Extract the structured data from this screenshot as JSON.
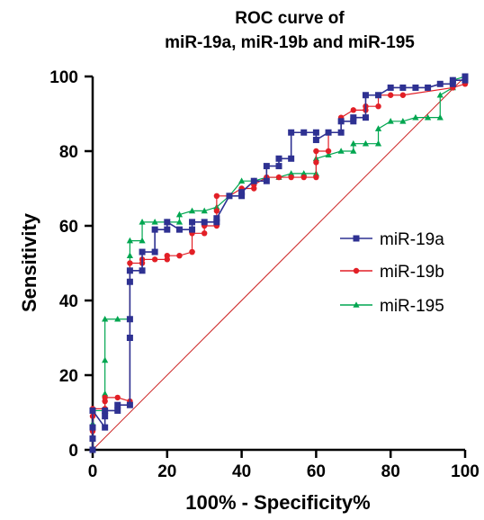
{
  "chart_data": {
    "type": "line",
    "title_line1": "ROC curve of",
    "title_line2": "miR-19a, miR-19b and miR-195",
    "xlabel": "100% - Specificity%",
    "ylabel": "Sensitivity",
    "xlim": [
      0,
      100
    ],
    "ylim": [
      0,
      100
    ],
    "xticks": [
      "0",
      "20",
      "40",
      "60",
      "80",
      "100"
    ],
    "yticks": [
      "0",
      "20",
      "40",
      "60",
      "80",
      "100"
    ],
    "legend_position": "right",
    "reference_line": {
      "x": [
        0,
        100
      ],
      "y": [
        0,
        100
      ],
      "color": "#cc2222"
    },
    "series": [
      {
        "name": "miR-19a",
        "color": "#2e3192",
        "marker": "square",
        "x": [
          0,
          0,
          0,
          0,
          3.3,
          3.3,
          3.3,
          6.7,
          6.7,
          10,
          10,
          10,
          10,
          10,
          13.3,
          13.3,
          16.7,
          16.7,
          20,
          20,
          23.3,
          26.7,
          26.7,
          30,
          33.3,
          33.3,
          36.7,
          40,
          40,
          43.3,
          46.7,
          46.7,
          50,
          50,
          53.3,
          53.3,
          56.7,
          60,
          60,
          63.3,
          66.7,
          66.7,
          70,
          70,
          73.3,
          73.3,
          76.7,
          80,
          83.3,
          86.7,
          90,
          93.3,
          96.7,
          96.7,
          100,
          100
        ],
        "y": [
          0,
          3,
          6,
          10.5,
          6,
          9,
          10.5,
          10.5,
          12,
          12,
          30,
          35,
          45,
          48,
          48,
          53,
          53,
          59,
          59,
          61,
          59,
          59,
          61,
          61,
          61,
          62,
          68,
          68,
          69,
          72,
          72,
          76,
          76,
          78,
          78,
          85,
          85,
          85,
          83,
          85,
          85,
          88,
          88,
          89,
          89,
          95,
          95,
          97,
          97,
          97,
          97,
          98,
          98,
          99,
          99,
          100
        ]
      },
      {
        "name": "miR-19b",
        "color": "#e21f26",
        "marker": "circle",
        "x": [
          0,
          0,
          0,
          0,
          3.3,
          3.3,
          3.3,
          6.7,
          10,
          10,
          10,
          10,
          13.3,
          13.3,
          16.7,
          20,
          20,
          23.3,
          26.7,
          26.7,
          26.7,
          30,
          30,
          33.3,
          33.3,
          33.3,
          36.7,
          40,
          43.3,
          43.3,
          46.7,
          50,
          53.3,
          56.7,
          60,
          60,
          60,
          63.3,
          63.3,
          66.7,
          66.7,
          70,
          73.3,
          73.3,
          76.7,
          76.7,
          80,
          83.3,
          96.7,
          100
        ],
        "y": [
          0,
          5,
          9,
          11,
          11,
          13,
          14,
          14,
          13,
          35,
          45,
          50,
          50,
          51,
          51,
          51,
          52,
          52,
          53,
          53,
          58,
          58,
          60,
          60,
          64,
          68,
          68,
          70,
          70,
          71,
          73,
          73,
          73,
          73,
          73,
          77,
          80,
          80,
          85,
          85,
          89,
          91,
          91,
          92,
          92,
          95,
          95,
          95,
          97,
          98
        ]
      },
      {
        "name": "miR-195",
        "color": "#00a650",
        "marker": "triangle",
        "x": [
          0,
          0,
          0,
          0,
          3.3,
          3.3,
          3.3,
          3.3,
          6.7,
          10,
          10,
          10,
          10,
          13.3,
          13.3,
          16.7,
          20,
          23.3,
          23.3,
          26.7,
          30,
          33.3,
          36.7,
          40,
          43.3,
          46.7,
          50,
          53.3,
          56.7,
          60,
          60,
          63.3,
          66.7,
          70,
          70,
          73.3,
          76.7,
          76.7,
          80,
          83.3,
          86.7,
          90,
          93.3,
          93.3,
          96.7,
          96.7,
          100
        ],
        "y": [
          0,
          3,
          7,
          10.5,
          10.5,
          15,
          24,
          35,
          35,
          35,
          45,
          52,
          56,
          56,
          61,
          61,
          61,
          61,
          63,
          64,
          64,
          65,
          68,
          72,
          72,
          73,
          73,
          74,
          74,
          74,
          78,
          79,
          80,
          80,
          82,
          82,
          82,
          86,
          88,
          88,
          89,
          89,
          89,
          95,
          97,
          99,
          100
        ]
      }
    ]
  }
}
